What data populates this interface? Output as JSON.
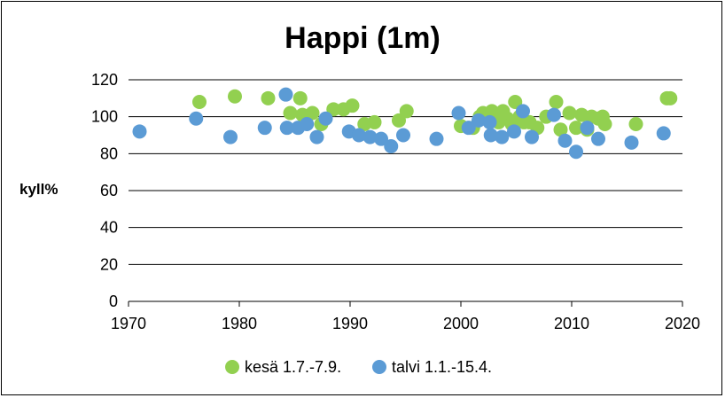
{
  "chart_data": {
    "type": "scatter",
    "title": "Happi (1m)",
    "xlabel": "",
    "ylabel": "kyll%",
    "xlim": [
      1970,
      2020
    ],
    "ylim": [
      0,
      120
    ],
    "xticks": [
      "1970",
      "1980",
      "1990",
      "2000",
      "2010",
      "2020"
    ],
    "yticks": [
      "0",
      "20",
      "40",
      "60",
      "80",
      "100",
      "120"
    ],
    "grid": "horizontal",
    "legend": "bottom",
    "series": [
      {
        "name": "kesä 1.7.-7.9.",
        "color": "#92d050",
        "points": [
          [
            1976.4,
            108
          ],
          [
            1979.6,
            111
          ],
          [
            1982.6,
            110
          ],
          [
            1984.6,
            102
          ],
          [
            1985.5,
            110
          ],
          [
            1985.7,
            101
          ],
          [
            1986.6,
            102
          ],
          [
            1987.4,
            96
          ],
          [
            1988.5,
            104
          ],
          [
            1989.4,
            104
          ],
          [
            1990.2,
            106
          ],
          [
            1991.3,
            96
          ],
          [
            1992.2,
            97
          ],
          [
            1994.4,
            98
          ],
          [
            1995.1,
            103
          ],
          [
            2000.0,
            95
          ],
          [
            2001.1,
            94
          ],
          [
            2001.7,
            100
          ],
          [
            2002.0,
            102
          ],
          [
            2002.4,
            100
          ],
          [
            2002.8,
            103
          ],
          [
            2003.1,
            101
          ],
          [
            2003.4,
            97
          ],
          [
            2003.8,
            103
          ],
          [
            2004.2,
            99
          ],
          [
            2004.6,
            96
          ],
          [
            2004.9,
            108
          ],
          [
            2005.3,
            100
          ],
          [
            2005.7,
            97
          ],
          [
            2006.2,
            97
          ],
          [
            2006.9,
            94
          ],
          [
            2007.7,
            100
          ],
          [
            2008.6,
            108
          ],
          [
            2009.0,
            93
          ],
          [
            2009.8,
            102
          ],
          [
            2010.4,
            94
          ],
          [
            2010.9,
            101
          ],
          [
            2011.4,
            93
          ],
          [
            2011.8,
            100
          ],
          [
            2012.4,
            99
          ],
          [
            2012.8,
            100
          ],
          [
            2013.0,
            96
          ],
          [
            2015.8,
            96
          ],
          [
            2018.6,
            110
          ],
          [
            2018.9,
            110
          ]
        ]
      },
      {
        "name": "talvi 1.1.-15.4.",
        "color": "#5b9bd5",
        "points": [
          [
            1971.0,
            92
          ],
          [
            1976.1,
            99
          ],
          [
            1979.2,
            89
          ],
          [
            1982.3,
            94
          ],
          [
            1984.2,
            112
          ],
          [
            1984.3,
            94
          ],
          [
            1985.3,
            94
          ],
          [
            1986.1,
            96
          ],
          [
            1987.0,
            89
          ],
          [
            1987.8,
            99
          ],
          [
            1989.9,
            92
          ],
          [
            1990.8,
            90
          ],
          [
            1991.8,
            89
          ],
          [
            1992.8,
            88
          ],
          [
            1993.7,
            84
          ],
          [
            1994.8,
            90
          ],
          [
            1997.8,
            88
          ],
          [
            1999.8,
            102
          ],
          [
            2000.7,
            94
          ],
          [
            2001.6,
            98
          ],
          [
            2002.6,
            97
          ],
          [
            2002.7,
            90
          ],
          [
            2003.7,
            89
          ],
          [
            2004.8,
            92
          ],
          [
            2005.6,
            103
          ],
          [
            2006.4,
            89
          ],
          [
            2008.4,
            101
          ],
          [
            2009.4,
            87
          ],
          [
            2010.4,
            81
          ],
          [
            2011.4,
            94
          ],
          [
            2012.4,
            88
          ],
          [
            2015.4,
            86
          ],
          [
            2018.3,
            91
          ]
        ]
      }
    ]
  }
}
